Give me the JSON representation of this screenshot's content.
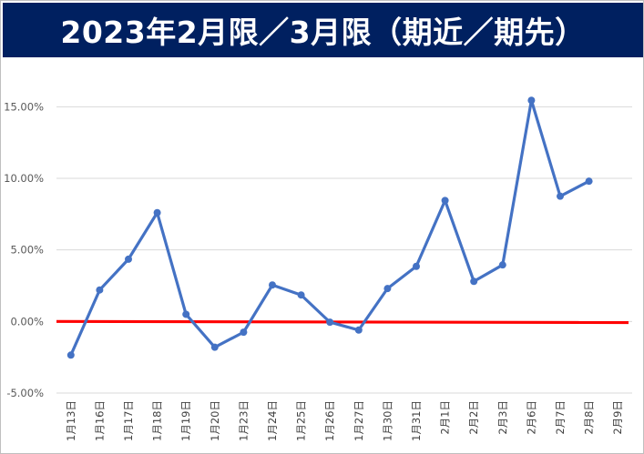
{
  "chart_data": {
    "type": "line",
    "title": "2023年2月限／3月限（期近／期先）",
    "categories": [
      "1月13日",
      "1月16日",
      "1月17日",
      "1月18日",
      "1月19日",
      "1月20日",
      "1月23日",
      "1月24日",
      "1月25日",
      "1月26日",
      "1月27日",
      "1月30日",
      "1月31日",
      "2月1日",
      "2月2日",
      "2月3日",
      "2月6日",
      "2月7日",
      "2月8日",
      "2月9日"
    ],
    "series": [
      {
        "color": "#4472c4",
        "values": [
          -2.35,
          2.2,
          4.35,
          7.6,
          0.5,
          -1.8,
          -0.75,
          2.55,
          1.85,
          -0.05,
          -0.6,
          2.3,
          3.85,
          8.45,
          2.8,
          3.95,
          15.45,
          8.75,
          9.8,
          null
        ]
      }
    ],
    "reference_line": {
      "value": 0,
      "color": "#ff0000"
    },
    "ylim": [
      -5,
      17.5
    ],
    "yticks": [
      -5,
      0,
      5,
      10,
      15
    ],
    "ytick_labels": [
      "-5.00%",
      "0.00%",
      "5.00%",
      "10.00%",
      "15.00%"
    ],
    "grid": "horizontal",
    "legend": "none"
  }
}
